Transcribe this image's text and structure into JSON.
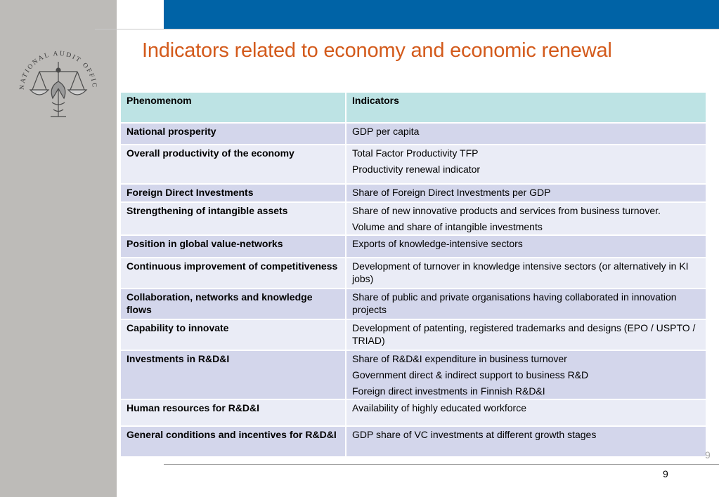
{
  "logo": {
    "text": "NATIONAL AUDIT OFFICE"
  },
  "slide": {
    "title": "Indicators related to economy and economic renewal"
  },
  "table": {
    "headers": [
      "Phenomenom",
      "Indicators"
    ],
    "rows": [
      {
        "phenomenon": "National prosperity",
        "indicators": [
          "GDP per capita"
        ]
      },
      {
        "phenomenon": "Overall productivity of the economy",
        "indicators": [
          "Total Factor Productivity TFP",
          "Productivity renewal indicator"
        ]
      },
      {
        "phenomenon": "Foreign Direct  Investments",
        "indicators": [
          "Share of Foreign Direct Investments per GDP"
        ]
      },
      {
        "phenomenon": "Strengthening of intangible assets",
        "indicators": [
          "Share of new innovative products and services from business turnover.",
          "Volume and share of intangible investments"
        ]
      },
      {
        "phenomenon": "Position in global value-networks",
        "indicators": [
          "Exports of knowledge-intensive sectors"
        ]
      },
      {
        "phenomenon": "Continuous improvement of competitiveness",
        "indicators": [
          "Development of turnover in knowledge intensive sectors (or alternatively in KI jobs)"
        ]
      },
      {
        "phenomenon": "Collaboration, networks and knowledge flows",
        "indicators": [
          "Share of public and private organisations having collaborated in innovation projects"
        ]
      },
      {
        "phenomenon": "Capability to innovate",
        "indicators": [
          "Development of patenting, registered trademarks and designs (EPO / USPTO / TRIAD)"
        ]
      },
      {
        "phenomenon": "Investments in R&D&I",
        "indicators": [
          "Share of R&D&I expenditure in business turnover",
          "Government direct & indirect support to business R&D",
          "Foreign direct investments in Finnish R&D&I"
        ]
      },
      {
        "phenomenon": "Human resources for R&D&I",
        "indicators": [
          "Availability of highly educated workforce"
        ]
      },
      {
        "phenomenon": "General conditions and incentives for R&D&I",
        "indicators": [
          "GDP share of VC investments at different growth stages"
        ]
      }
    ]
  },
  "footer": {
    "page_number_gray": "9",
    "page_number": "9"
  },
  "colors": {
    "title": "#d35a1b",
    "top_bar": "#0063a6",
    "sidebar": "#bdbbb8",
    "header_row": "#bde3e4",
    "row_dark": "#d3d6eb",
    "row_light": "#eaecf6"
  }
}
